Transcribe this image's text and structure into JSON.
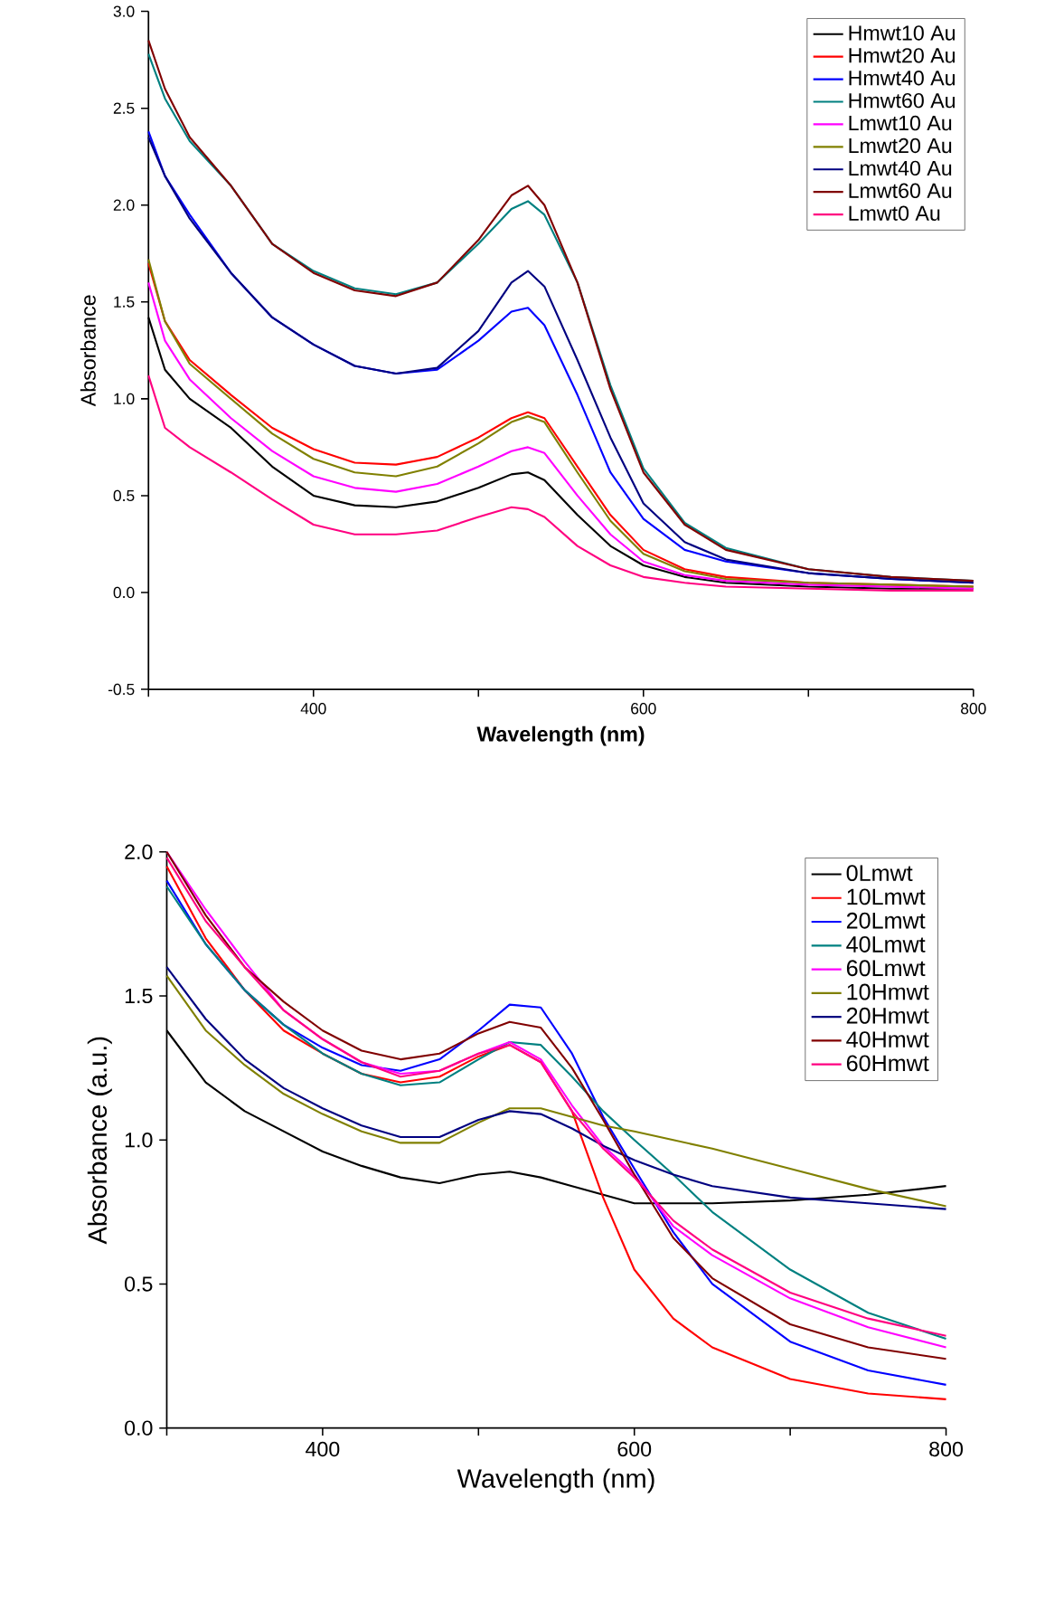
{
  "chart_data": [
    {
      "type": "line",
      "xlabel": "**Wavelength (nm)**",
      "ylabel": "Absorbance",
      "legend": "top right",
      "x": [
        300,
        310,
        325,
        350,
        375,
        400,
        425,
        450,
        475,
        500,
        520,
        530,
        540,
        560,
        580,
        600,
        625,
        650,
        700,
        750,
        800
      ],
      "xlim": [
        300,
        800
      ],
      "ylim": [
        -0.5,
        3.0
      ],
      "xticks": [
        {
          "value": 300,
          "label": null
        },
        400,
        {
          "value": 500,
          "label": null
        },
        600,
        {
          "value": 700,
          "label": null
        },
        800
      ],
      "yticks": [
        {
          "value": -0.5,
          "label": "-0.5"
        },
        {
          "value": 0,
          "label": "0.0"
        },
        {
          "value": 0.5,
          "label": "0.5"
        },
        {
          "value": 1,
          "label": "1.0"
        },
        {
          "value": 1.5,
          "label": "1.5"
        },
        {
          "value": 2,
          "label": "2.0"
        },
        {
          "value": 2.5,
          "label": "2.5"
        },
        {
          "value": 3,
          "label": "3.0"
        }
      ],
      "series": [
        {
          "name": "Hmwt10 Au",
          "color": "#000000",
          "values": [
            1.42,
            1.15,
            1.0,
            0.85,
            0.65,
            0.5,
            0.45,
            0.44,
            0.47,
            0.54,
            0.61,
            0.62,
            0.58,
            0.4,
            0.24,
            0.14,
            0.08,
            0.05,
            0.03,
            0.02,
            0.02
          ]
        },
        {
          "name": "Hmwt20 Au",
          "color": "#ff0000",
          "values": [
            1.7,
            1.4,
            1.2,
            1.02,
            0.85,
            0.74,
            0.67,
            0.66,
            0.7,
            0.8,
            0.9,
            0.93,
            0.9,
            0.65,
            0.4,
            0.22,
            0.12,
            0.08,
            0.05,
            0.04,
            0.03
          ]
        },
        {
          "name": "Hmwt40 Au",
          "color": "#0000ff",
          "values": [
            2.38,
            2.15,
            1.95,
            1.65,
            1.42,
            1.28,
            1.17,
            1.13,
            1.15,
            1.3,
            1.45,
            1.47,
            1.38,
            1.02,
            0.62,
            0.38,
            0.22,
            0.16,
            0.1,
            0.07,
            0.05
          ]
        },
        {
          "name": "Hmwt60 Au",
          "color": "#008080",
          "values": [
            2.78,
            2.55,
            2.33,
            2.1,
            1.8,
            1.66,
            1.57,
            1.54,
            1.6,
            1.8,
            1.98,
            2.02,
            1.95,
            1.6,
            1.07,
            0.64,
            0.36,
            0.23,
            0.12,
            0.08,
            0.06
          ]
        },
        {
          "name": "Lmwt10 Au",
          "color": "#ff00ff",
          "values": [
            1.6,
            1.3,
            1.1,
            0.9,
            0.73,
            0.6,
            0.54,
            0.52,
            0.56,
            0.65,
            0.73,
            0.75,
            0.72,
            0.5,
            0.3,
            0.16,
            0.09,
            0.06,
            0.04,
            0.03,
            0.02
          ]
        },
        {
          "name": "Lmwt20 Au",
          "color": "#808000",
          "values": [
            1.72,
            1.4,
            1.18,
            1.0,
            0.82,
            0.69,
            0.62,
            0.6,
            0.65,
            0.77,
            0.88,
            0.91,
            0.88,
            0.62,
            0.37,
            0.2,
            0.11,
            0.07,
            0.05,
            0.04,
            0.03
          ]
        },
        {
          "name": "Lmwt40 Au",
          "color": "#000080",
          "values": [
            2.35,
            2.15,
            1.93,
            1.65,
            1.42,
            1.28,
            1.17,
            1.13,
            1.16,
            1.35,
            1.6,
            1.66,
            1.58,
            1.2,
            0.8,
            0.46,
            0.26,
            0.17,
            0.1,
            0.07,
            0.05
          ]
        },
        {
          "name": "Lmwt60 Au",
          "color": "#800000",
          "values": [
            2.85,
            2.6,
            2.35,
            2.1,
            1.8,
            1.65,
            1.56,
            1.53,
            1.6,
            1.82,
            2.05,
            2.1,
            2.0,
            1.6,
            1.05,
            0.62,
            0.35,
            0.22,
            0.12,
            0.08,
            0.06
          ]
        },
        {
          "name": "Lmwt0 Au",
          "color": "#ff0080",
          "values": [
            1.12,
            0.85,
            0.75,
            0.62,
            0.48,
            0.35,
            0.3,
            0.3,
            0.32,
            0.39,
            0.44,
            0.43,
            0.39,
            0.24,
            0.14,
            0.08,
            0.05,
            0.03,
            0.02,
            0.01,
            0.01
          ]
        }
      ]
    },
    {
      "type": "line",
      "xlabel": "Wavelength (nm)",
      "ylabel": "Absorbance (a.u.)",
      "legend": "top right",
      "x": [
        300,
        325,
        350,
        375,
        400,
        425,
        450,
        475,
        500,
        520,
        540,
        560,
        580,
        600,
        625,
        650,
        700,
        750,
        800
      ],
      "xlim": [
        300,
        800
      ],
      "ylim": [
        0,
        2.0
      ],
      "xticks": [
        {
          "value": 300,
          "label": null
        },
        400,
        {
          "value": 500,
          "label": null
        },
        600,
        {
          "value": 700,
          "label": null
        },
        800
      ],
      "yticks": [
        {
          "value": 0,
          "label": "0.0"
        },
        {
          "value": 0.5,
          "label": "0.5"
        },
        {
          "value": 1,
          "label": "1.0"
        },
        {
          "value": 1.5,
          "label": "1.5"
        },
        {
          "value": 2,
          "label": "2.0"
        }
      ],
      "series": [
        {
          "name": "0Lmwt",
          "color": "#000000",
          "values": [
            1.38,
            1.2,
            1.1,
            1.03,
            0.96,
            0.91,
            0.87,
            0.85,
            0.88,
            0.89,
            0.87,
            0.84,
            0.81,
            0.78,
            0.78,
            0.78,
            0.79,
            0.81,
            0.84
          ]
        },
        {
          "name": "10Lmwt",
          "color": "#ff0000",
          "values": [
            1.95,
            1.7,
            1.52,
            1.38,
            1.3,
            1.23,
            1.2,
            1.22,
            1.29,
            1.33,
            1.27,
            1.1,
            0.8,
            0.55,
            0.38,
            0.28,
            0.17,
            0.12,
            0.1
          ]
        },
        {
          "name": "20Lmwt",
          "color": "#0000ff",
          "values": [
            1.9,
            1.68,
            1.52,
            1.4,
            1.32,
            1.26,
            1.24,
            1.28,
            1.38,
            1.47,
            1.46,
            1.3,
            1.08,
            0.9,
            0.68,
            0.5,
            0.3,
            0.2,
            0.15
          ]
        },
        {
          "name": "40Lmwt",
          "color": "#008080",
          "values": [
            1.88,
            1.68,
            1.52,
            1.4,
            1.3,
            1.23,
            1.19,
            1.2,
            1.28,
            1.34,
            1.33,
            1.22,
            1.1,
            1.0,
            0.88,
            0.75,
            0.55,
            0.4,
            0.31
          ]
        },
        {
          "name": "60Lmwt",
          "color": "#ff00ff",
          "values": [
            2.0,
            1.8,
            1.62,
            1.45,
            1.35,
            1.27,
            1.23,
            1.24,
            1.3,
            1.34,
            1.28,
            1.12,
            0.98,
            0.88,
            0.7,
            0.6,
            0.45,
            0.35,
            0.28
          ]
        },
        {
          "name": "10Hmwt",
          "color": "#808000",
          "values": [
            1.57,
            1.38,
            1.26,
            1.16,
            1.09,
            1.03,
            0.99,
            0.99,
            1.06,
            1.11,
            1.11,
            1.08,
            1.05,
            1.03,
            1.0,
            0.97,
            0.9,
            0.83,
            0.77
          ]
        },
        {
          "name": "20Hmwt",
          "color": "#000080",
          "values": [
            1.6,
            1.42,
            1.28,
            1.18,
            1.11,
            1.05,
            1.01,
            1.01,
            1.07,
            1.1,
            1.09,
            1.04,
            0.98,
            0.93,
            0.88,
            0.84,
            0.8,
            0.78,
            0.76
          ]
        },
        {
          "name": "40Hmwt",
          "color": "#800000",
          "values": [
            2.0,
            1.78,
            1.6,
            1.48,
            1.38,
            1.31,
            1.28,
            1.3,
            1.37,
            1.41,
            1.39,
            1.25,
            1.07,
            0.88,
            0.66,
            0.52,
            0.36,
            0.28,
            0.24
          ]
        },
        {
          "name": "60Hmwt",
          "color": "#ff0080",
          "values": [
            1.98,
            1.76,
            1.6,
            1.45,
            1.35,
            1.27,
            1.22,
            1.24,
            1.3,
            1.33,
            1.27,
            1.1,
            0.97,
            0.87,
            0.72,
            0.62,
            0.47,
            0.38,
            0.32
          ]
        }
      ]
    }
  ]
}
